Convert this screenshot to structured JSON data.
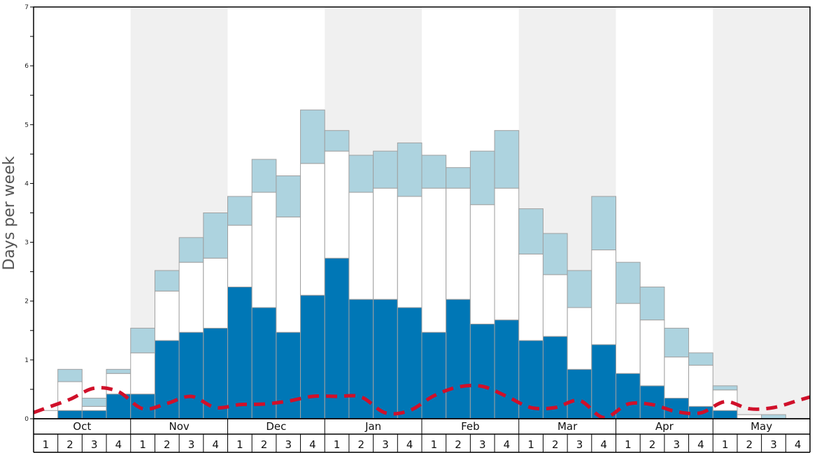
{
  "chart_data": {
    "type": "bar",
    "stacked": true,
    "ylabel": "Days per week",
    "ylim": [
      0,
      7
    ],
    "yticks": [
      "0",
      "1",
      "2",
      "3",
      "4",
      "5",
      "6",
      "7"
    ],
    "months": [
      "Oct",
      "Nov",
      "Dec",
      "Jan",
      "Feb",
      "Mar",
      "Apr",
      "May"
    ],
    "weeks_per_month": [
      "1",
      "2",
      "3",
      "4"
    ],
    "shaded_months": [
      false,
      true,
      false,
      true,
      false,
      true,
      false,
      true
    ],
    "colors": {
      "dark": "#0077b6",
      "white": "#ffffff",
      "light": "#add3df",
      "line": "#d0102a",
      "band": "#f0f0f0",
      "bar_edge": "#a0a0a0"
    },
    "series": [
      {
        "values": [
          0.0,
          0.14,
          0.14,
          0.42,
          0.42,
          1.33,
          1.47,
          1.54,
          2.24,
          1.89,
          1.47,
          2.1,
          2.73,
          2.03,
          2.03,
          1.89,
          1.47,
          2.03,
          1.61,
          1.68,
          1.33,
          1.4,
          0.84,
          1.26,
          0.77,
          0.56,
          0.35,
          0.21,
          0.14,
          0.0,
          0.0,
          0.0
        ]
      },
      {
        "values": [
          0.14,
          0.49,
          0.07,
          0.35,
          0.7,
          0.84,
          1.19,
          1.19,
          1.05,
          1.96,
          1.96,
          2.24,
          1.82,
          1.82,
          1.89,
          1.89,
          2.45,
          1.89,
          2.03,
          2.24,
          1.47,
          1.05,
          1.05,
          1.61,
          1.19,
          1.12,
          0.7,
          0.7,
          0.35,
          0.07,
          0.0,
          0.0
        ]
      },
      {
        "values": [
          0.0,
          0.21,
          0.14,
          0.07,
          0.42,
          0.35,
          0.42,
          0.77,
          0.49,
          0.56,
          0.7,
          0.91,
          0.35,
          0.63,
          0.63,
          0.91,
          0.56,
          0.35,
          0.91,
          0.98,
          0.77,
          0.7,
          0.63,
          0.91,
          0.7,
          0.56,
          0.49,
          0.21,
          0.07,
          0.0,
          0.07,
          0.0
        ]
      }
    ],
    "line": {
      "style": "dashed",
      "values": [
        0.18,
        0.33,
        0.52,
        0.46,
        0.17,
        0.26,
        0.38,
        0.19,
        0.24,
        0.25,
        0.3,
        0.38,
        0.38,
        0.37,
        0.1,
        0.14,
        0.39,
        0.54,
        0.55,
        0.38,
        0.19,
        0.19,
        0.31,
        0.02,
        0.25,
        0.24,
        0.12,
        0.1,
        0.29,
        0.17,
        0.19,
        0.31
      ]
    }
  }
}
